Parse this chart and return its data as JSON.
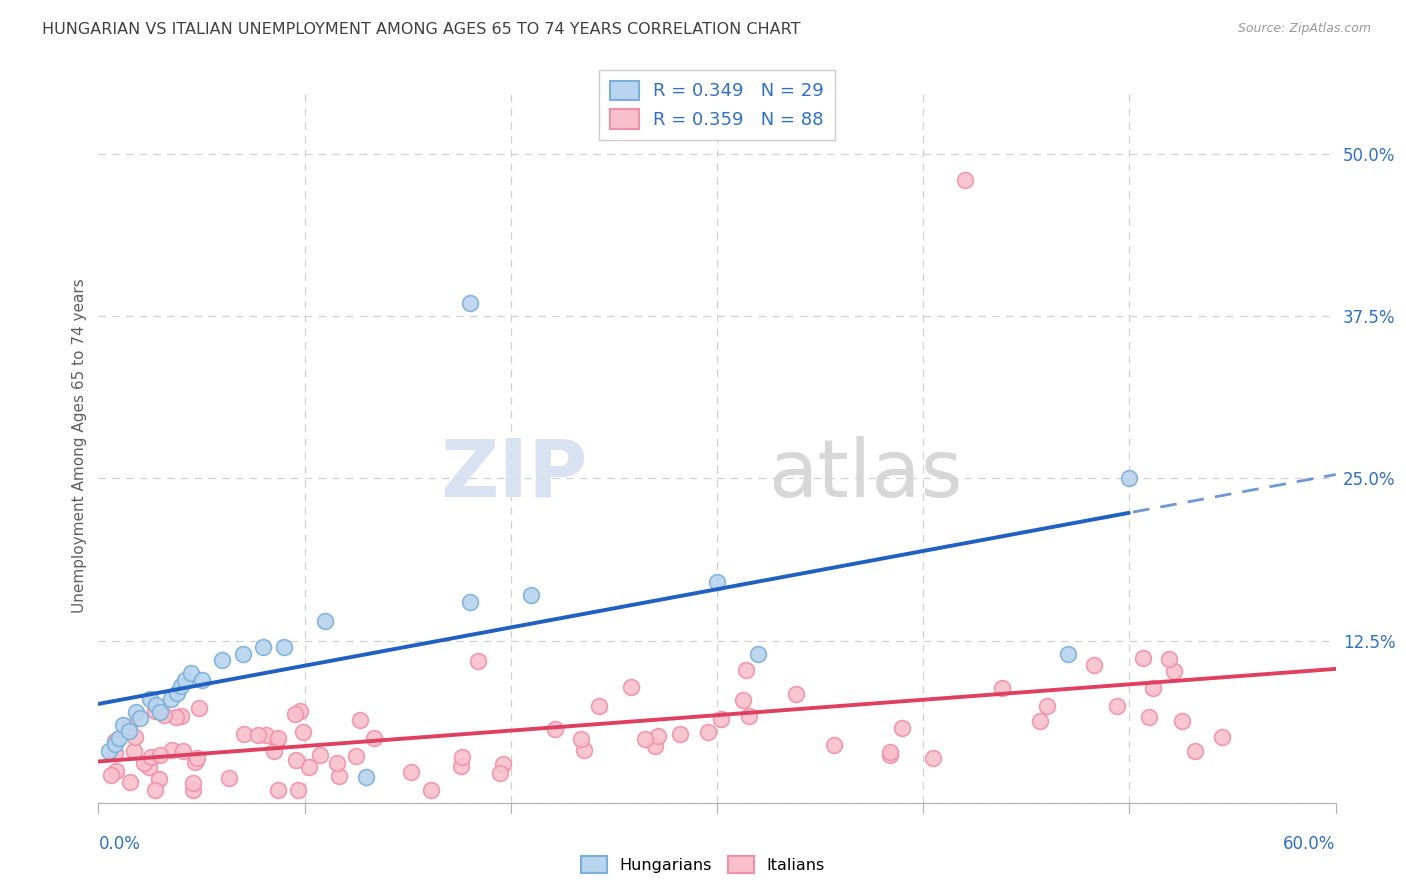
{
  "title": "HUNGARIAN VS ITALIAN UNEMPLOYMENT AMONG AGES 65 TO 74 YEARS CORRELATION CHART",
  "source": "Source: ZipAtlas.com",
  "ylabel": "Unemployment Among Ages 65 to 74 years",
  "xlim": [
    0.0,
    0.6
  ],
  "ylim": [
    0.0,
    0.55
  ],
  "yticks": [
    0.0,
    0.125,
    0.25,
    0.375,
    0.5
  ],
  "ytick_labels": [
    "",
    "12.5%",
    "25.0%",
    "37.5%",
    "50.0%"
  ],
  "blue_scatter_face": "#b8d4ee",
  "blue_scatter_edge": "#7ab0d8",
  "pink_scatter_face": "#f8c0cc",
  "pink_scatter_edge": "#f090a8",
  "trend_blue": "#2060c0",
  "trend_pink": "#e04060",
  "R_hungarian": 0.349,
  "N_hungarian": 29,
  "R_italian": 0.359,
  "N_italian": 88,
  "background_color": "#ffffff",
  "grid_color": "#d0d0d0",
  "title_color": "#404040",
  "tick_label_color": "#3070c0",
  "ylabel_color": "#606060",
  "legend_text_color": "#3070c0",
  "watermark_zip_color": "#d4dff0",
  "watermark_atlas_color": "#d0d0d0"
}
